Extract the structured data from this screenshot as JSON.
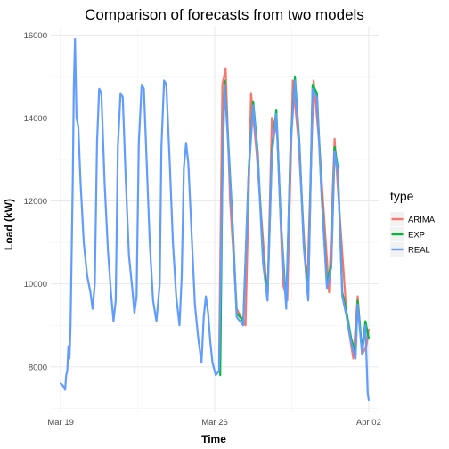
{
  "chart_data": {
    "type": "line",
    "title": "Comparison of forecasts from two models",
    "xlabel": "Time",
    "ylabel": "Load (kW)",
    "x_ticks": [
      {
        "label": "Mar 19",
        "day": 0
      },
      {
        "label": "Mar 26",
        "day": 7
      },
      {
        "label": "Apr 02",
        "day": 14
      }
    ],
    "y_ticks": [
      8000,
      10000,
      12000,
      14000,
      16000
    ],
    "xlim": [
      "Mar 18",
      "Apr 02"
    ],
    "ylim": [
      6900,
      16200
    ],
    "grid": true,
    "legend": {
      "title": "type",
      "position": "right",
      "items": [
        {
          "name": "ARIMA",
          "color": "#f8766d"
        },
        {
          "name": "EXP",
          "color": "#00ba38"
        },
        {
          "name": "REAL",
          "color": "#619cff"
        }
      ]
    },
    "series": [
      {
        "name": "ARIMA",
        "color": "#f8766d",
        "points": [
          [
            7.2,
            8100
          ],
          [
            7.35,
            14800
          ],
          [
            7.5,
            15200
          ],
          [
            7.7,
            12000
          ],
          [
            8.0,
            9400
          ],
          [
            8.4,
            9000
          ],
          [
            8.65,
            14600
          ],
          [
            8.9,
            13200
          ],
          [
            9.4,
            9600
          ],
          [
            9.6,
            14000
          ],
          [
            9.85,
            13600
          ],
          [
            10.1,
            10000
          ],
          [
            10.3,
            9600
          ],
          [
            10.55,
            14900
          ],
          [
            10.8,
            13500
          ],
          [
            11.2,
            9800
          ],
          [
            11.5,
            14900
          ],
          [
            11.75,
            13400
          ],
          [
            12.2,
            9800
          ],
          [
            12.45,
            13500
          ],
          [
            12.7,
            11500
          ],
          [
            13.0,
            9200
          ],
          [
            13.3,
            8200
          ],
          [
            13.5,
            9700
          ],
          [
            13.7,
            8300
          ],
          [
            13.9,
            8500
          ],
          [
            14.0,
            8900
          ]
        ]
      },
      {
        "name": "EXP",
        "color": "#00ba38",
        "points": [
          [
            7.25,
            7800
          ],
          [
            7.35,
            12600
          ],
          [
            7.45,
            14900
          ],
          [
            7.6,
            13600
          ],
          [
            7.8,
            11600
          ],
          [
            8.0,
            9300
          ],
          [
            8.3,
            9100
          ],
          [
            8.55,
            12800
          ],
          [
            8.75,
            14400
          ],
          [
            8.95,
            13200
          ],
          [
            9.2,
            10600
          ],
          [
            9.4,
            9700
          ],
          [
            9.6,
            13200
          ],
          [
            9.8,
            14200
          ],
          [
            10.0,
            11600
          ],
          [
            10.25,
            9500
          ],
          [
            10.45,
            13400
          ],
          [
            10.65,
            15000
          ],
          [
            10.85,
            13400
          ],
          [
            11.05,
            11000
          ],
          [
            11.25,
            9700
          ],
          [
            11.45,
            14800
          ],
          [
            11.65,
            14600
          ],
          [
            11.85,
            12300
          ],
          [
            12.1,
            10000
          ],
          [
            12.3,
            10500
          ],
          [
            12.45,
            13300
          ],
          [
            12.6,
            12800
          ],
          [
            12.8,
            9800
          ],
          [
            13.0,
            9300
          ],
          [
            13.2,
            8700
          ],
          [
            13.4,
            8300
          ],
          [
            13.5,
            9600
          ],
          [
            13.7,
            8400
          ],
          [
            13.85,
            9100
          ],
          [
            14.0,
            8700
          ]
        ]
      },
      {
        "name": "REAL",
        "color": "#619cff",
        "points": [
          [
            0.0,
            7600
          ],
          [
            0.1,
            7550
          ],
          [
            0.2,
            7450
          ],
          [
            0.25,
            7800
          ],
          [
            0.3,
            7900
          ],
          [
            0.35,
            8500
          ],
          [
            0.4,
            8200
          ],
          [
            0.45,
            9000
          ],
          [
            0.55,
            12500
          ],
          [
            0.6,
            14800
          ],
          [
            0.65,
            15900
          ],
          [
            0.72,
            14000
          ],
          [
            0.8,
            13800
          ],
          [
            0.9,
            12500
          ],
          [
            1.05,
            11000
          ],
          [
            1.2,
            10200
          ],
          [
            1.35,
            9800
          ],
          [
            1.45,
            9400
          ],
          [
            1.55,
            10000
          ],
          [
            1.65,
            13400
          ],
          [
            1.75,
            14700
          ],
          [
            1.85,
            14600
          ],
          [
            2.0,
            12400
          ],
          [
            2.15,
            10800
          ],
          [
            2.3,
            9700
          ],
          [
            2.4,
            9100
          ],
          [
            2.5,
            9600
          ],
          [
            2.6,
            13300
          ],
          [
            2.72,
            14600
          ],
          [
            2.82,
            14500
          ],
          [
            2.95,
            12600
          ],
          [
            3.1,
            10700
          ],
          [
            3.25,
            9900
          ],
          [
            3.35,
            9300
          ],
          [
            3.45,
            9700
          ],
          [
            3.55,
            13400
          ],
          [
            3.68,
            14800
          ],
          [
            3.78,
            14700
          ],
          [
            3.92,
            12800
          ],
          [
            4.05,
            11000
          ],
          [
            4.2,
            9600
          ],
          [
            4.35,
            9100
          ],
          [
            4.5,
            10000
          ],
          [
            4.58,
            13300
          ],
          [
            4.7,
            14900
          ],
          [
            4.8,
            14800
          ],
          [
            4.95,
            13000
          ],
          [
            5.1,
            11000
          ],
          [
            5.25,
            9700
          ],
          [
            5.4,
            9000
          ],
          [
            5.5,
            10200
          ],
          [
            5.6,
            12800
          ],
          [
            5.7,
            13400
          ],
          [
            5.8,
            12900
          ],
          [
            5.95,
            11200
          ],
          [
            6.1,
            9500
          ],
          [
            6.25,
            8700
          ],
          [
            6.4,
            8100
          ],
          [
            6.5,
            9200
          ],
          [
            6.6,
            9700
          ],
          [
            6.7,
            9300
          ],
          [
            6.8,
            8600
          ],
          [
            6.9,
            8100
          ],
          [
            7.05,
            7800
          ],
          [
            7.2,
            7900
          ],
          [
            7.35,
            12400
          ],
          [
            7.45,
            14800
          ],
          [
            7.6,
            13500
          ],
          [
            7.8,
            11500
          ],
          [
            8.0,
            9200
          ],
          [
            8.3,
            9000
          ],
          [
            8.55,
            12700
          ],
          [
            8.75,
            14300
          ],
          [
            8.95,
            13100
          ],
          [
            9.2,
            10500
          ],
          [
            9.4,
            9600
          ],
          [
            9.6,
            13100
          ],
          [
            9.8,
            14100
          ],
          [
            10.0,
            11500
          ],
          [
            10.25,
            9400
          ],
          [
            10.45,
            13300
          ],
          [
            10.65,
            14900
          ],
          [
            10.85,
            13300
          ],
          [
            11.05,
            10900
          ],
          [
            11.25,
            9600
          ],
          [
            11.45,
            14700
          ],
          [
            11.65,
            14500
          ],
          [
            11.85,
            12200
          ],
          [
            12.1,
            9900
          ],
          [
            12.3,
            10400
          ],
          [
            12.45,
            13200
          ],
          [
            12.6,
            12700
          ],
          [
            12.8,
            9700
          ],
          [
            13.0,
            9200
          ],
          [
            13.2,
            8600
          ],
          [
            13.4,
            8200
          ],
          [
            13.5,
            9500
          ],
          [
            13.7,
            8300
          ],
          [
            13.85,
            9000
          ],
          [
            13.95,
            7400
          ],
          [
            14.0,
            7200
          ]
        ]
      }
    ]
  }
}
